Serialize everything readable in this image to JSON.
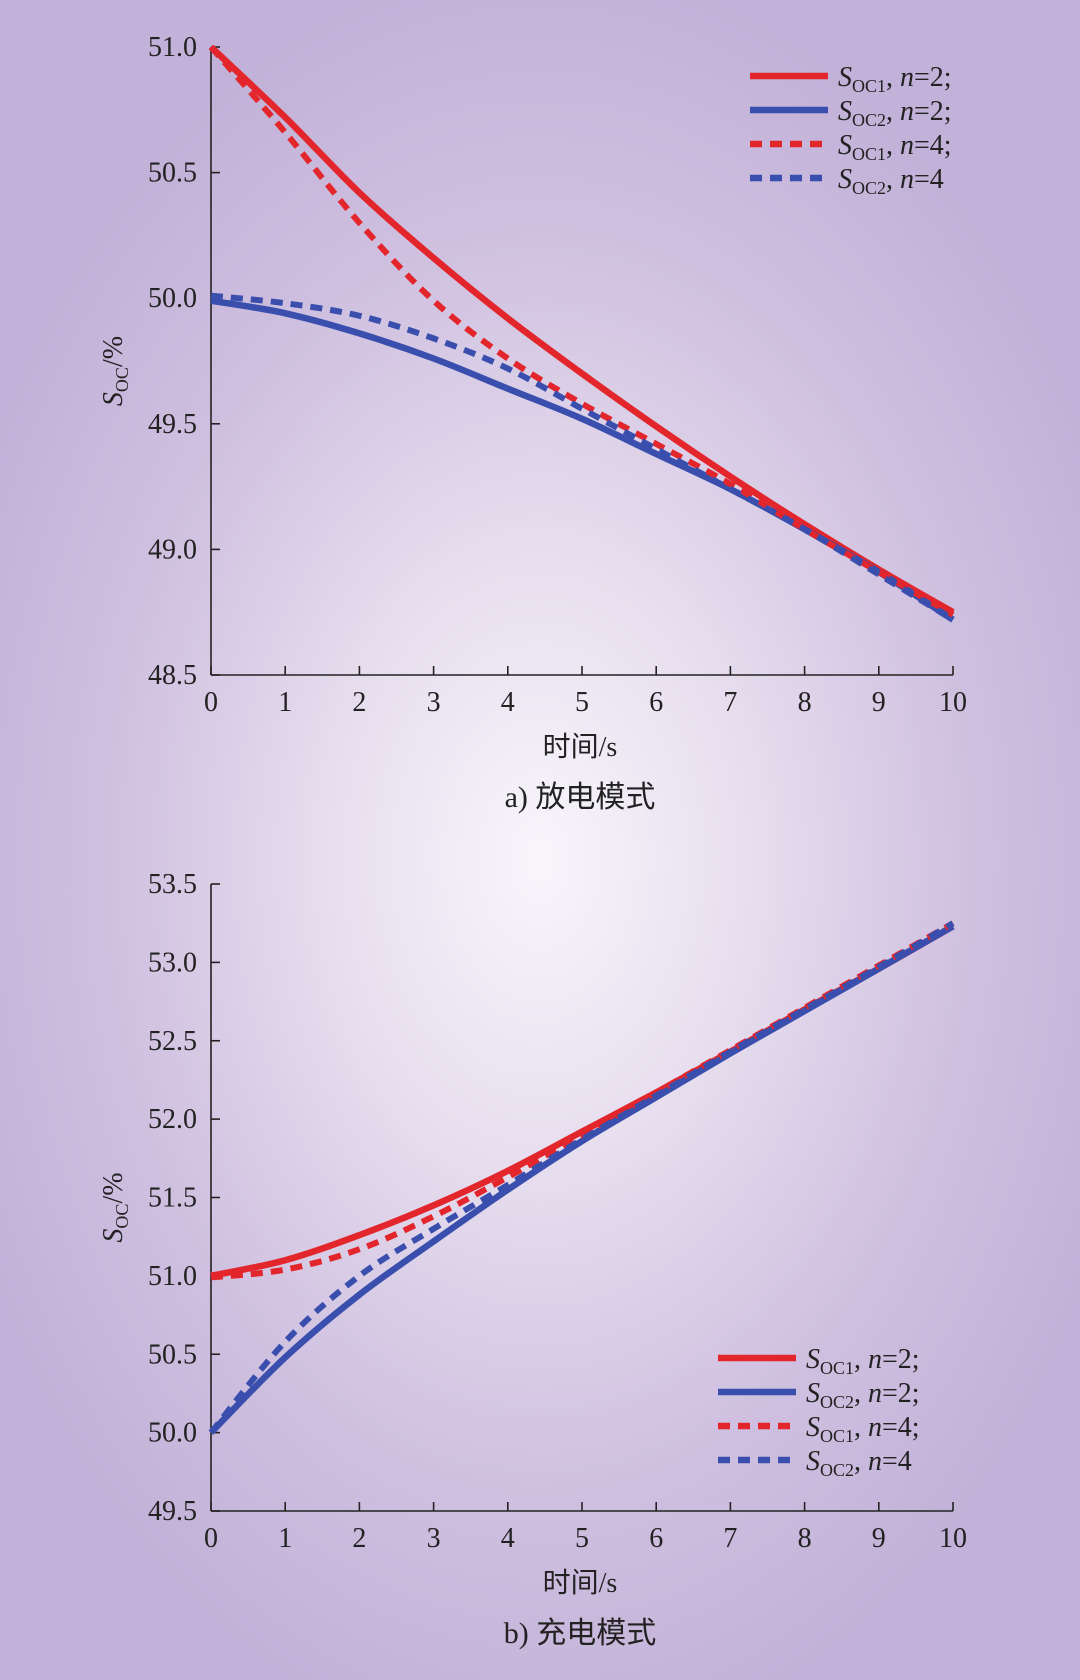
{
  "chart_data": [
    {
      "type": "line",
      "id": "a",
      "caption": "a) 放电模式",
      "xlabel": "时间/s",
      "ylabel": {
        "main": "S",
        "sub": "OC",
        "suffix": "/%"
      },
      "xlim": [
        0,
        10
      ],
      "ylim": [
        48.5,
        51.0
      ],
      "xticks": [
        "0",
        "1",
        "2",
        "3",
        "4",
        "5",
        "6",
        "7",
        "8",
        "9",
        "10"
      ],
      "yticks": [
        "48.5",
        "49.0",
        "49.5",
        "50.0",
        "50.5",
        "51.0"
      ],
      "legend_position": "top-right",
      "series": [
        {
          "name": "SOC1, n=2;",
          "legend": {
            "main": "S",
            "sub": "OC1",
            "suffix": ", ",
            "italic": "n",
            "tail": "=2;"
          },
          "color": "#e3262c",
          "style": "solid",
          "x": [
            0,
            1,
            2,
            3,
            4,
            5,
            6,
            7,
            8,
            9,
            10
          ],
          "y": [
            51.0,
            50.72,
            50.42,
            50.16,
            49.92,
            49.7,
            49.49,
            49.29,
            49.1,
            48.92,
            48.75
          ]
        },
        {
          "name": "SOC2, n=2;",
          "legend": {
            "main": "S",
            "sub": "OC2",
            "suffix": ", ",
            "italic": "n",
            "tail": "=2;"
          },
          "color": "#3a4fad",
          "style": "solid",
          "x": [
            0,
            1,
            2,
            3,
            4,
            5,
            6,
            7,
            8,
            9,
            10
          ],
          "y": [
            49.99,
            49.94,
            49.86,
            49.76,
            49.64,
            49.52,
            49.38,
            49.24,
            49.08,
            48.91,
            48.72
          ]
        },
        {
          "name": "SOC1, n=4;",
          "legend": {
            "main": "S",
            "sub": "OC1",
            "suffix": ", ",
            "italic": "n",
            "tail": "=4;"
          },
          "color": "#e3262c",
          "style": "dashed",
          "x": [
            0,
            1,
            2,
            3,
            4,
            5,
            6,
            7,
            8,
            9,
            10
          ],
          "y": [
            51.0,
            50.66,
            50.3,
            49.99,
            49.76,
            49.58,
            49.42,
            49.26,
            49.08,
            48.91,
            48.74
          ]
        },
        {
          "name": "SOC2, n=4",
          "legend": {
            "main": "S",
            "sub": "OC2",
            "suffix": ", ",
            "italic": "n",
            "tail": "=4"
          },
          "color": "#3a4fad",
          "style": "dashed",
          "x": [
            0,
            1,
            2,
            3,
            4,
            5,
            6,
            7,
            8,
            9,
            10
          ],
          "y": [
            50.01,
            49.98,
            49.93,
            49.84,
            49.72,
            49.56,
            49.4,
            49.24,
            49.08,
            48.9,
            48.72
          ]
        }
      ]
    },
    {
      "type": "line",
      "id": "b",
      "caption": "b) 充电模式",
      "xlabel": "时间/s",
      "ylabel": {
        "main": "S",
        "sub": "OC",
        "suffix": "/%"
      },
      "xlim": [
        0,
        10
      ],
      "ylim": [
        49.5,
        53.5
      ],
      "xticks": [
        "0",
        "1",
        "2",
        "3",
        "4",
        "5",
        "6",
        "7",
        "8",
        "9",
        "10"
      ],
      "yticks": [
        "49.5",
        "50.0",
        "50.5",
        "51.0",
        "51.5",
        "52.0",
        "52.5",
        "53.0",
        "53.5"
      ],
      "legend_position": "bottom-right",
      "series": [
        {
          "name": "SOC1, n=2;",
          "legend": {
            "main": "S",
            "sub": "OC1",
            "suffix": ", ",
            "italic": "n",
            "tail": "=2;"
          },
          "color": "#e3262c",
          "style": "solid",
          "x": [
            0,
            1,
            2,
            3,
            4,
            5,
            6,
            7,
            8,
            9,
            10
          ],
          "y": [
            51.0,
            51.1,
            51.26,
            51.45,
            51.67,
            51.92,
            52.17,
            52.43,
            52.7,
            52.96,
            53.23
          ]
        },
        {
          "name": "SOC2, n=2;",
          "legend": {
            "main": "S",
            "sub": "OC2",
            "suffix": ", ",
            "italic": "n",
            "tail": "=2;"
          },
          "color": "#3a4fad",
          "style": "solid",
          "x": [
            0,
            1,
            2,
            3,
            4,
            5,
            6,
            7,
            8,
            9,
            10
          ],
          "y": [
            50.0,
            50.48,
            50.88,
            51.22,
            51.55,
            51.86,
            52.14,
            52.42,
            52.69,
            52.96,
            53.23
          ]
        },
        {
          "name": "SOC1, n=4;",
          "legend": {
            "main": "S",
            "sub": "OC1",
            "suffix": ", ",
            "italic": "n",
            "tail": "=4;"
          },
          "color": "#e3262c",
          "style": "dashed",
          "x": [
            0,
            1,
            2,
            3,
            4,
            5,
            6,
            7,
            8,
            9,
            10
          ],
          "y": [
            50.99,
            51.04,
            51.17,
            51.38,
            51.63,
            51.9,
            52.17,
            52.44,
            52.71,
            52.98,
            53.25
          ]
        },
        {
          "name": "SOC2, n=4",
          "legend": {
            "main": "S",
            "sub": "OC2",
            "suffix": ", ",
            "italic": "n",
            "tail": "=4"
          },
          "color": "#3a4fad",
          "style": "dashed",
          "x": [
            0,
            1,
            2,
            3,
            4,
            5,
            6,
            7,
            8,
            9,
            10
          ],
          "y": [
            50.0,
            50.58,
            51.0,
            51.3,
            51.58,
            51.87,
            52.15,
            52.43,
            52.7,
            52.97,
            53.25
          ]
        }
      ]
    }
  ]
}
